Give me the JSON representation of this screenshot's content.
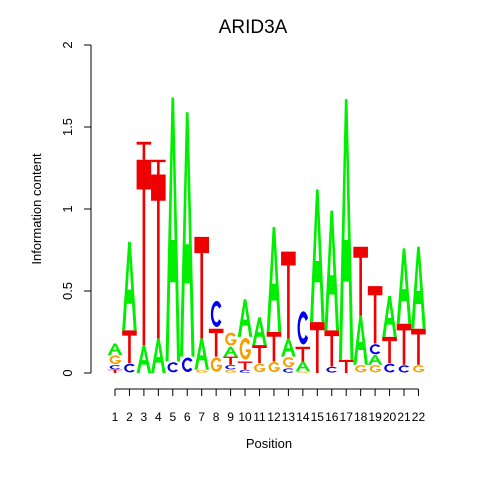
{
  "chart_data": {
    "type": "sequence-logo",
    "title": "ARID3A",
    "xlabel": "Position",
    "ylabel": "Information content",
    "ylim": [
      0,
      2
    ],
    "yticks": [
      "0",
      "0.5",
      "1",
      "1.5",
      "2"
    ],
    "positions": [
      "1",
      "2",
      "3",
      "4",
      "5",
      "6",
      "7",
      "8",
      "9",
      "10",
      "11",
      "12",
      "13",
      "14",
      "15",
      "16",
      "17",
      "18",
      "19",
      "20",
      "21",
      "22"
    ],
    "colors": {
      "A": "#00ee00",
      "C": "#0000ee",
      "G": "#f5a000",
      "T": "#ee0000"
    },
    "stacks": [
      [
        [
          "T",
          0.02
        ],
        [
          "C",
          0.03
        ],
        [
          "G",
          0.06
        ],
        [
          "A",
          0.07
        ]
      ],
      [
        [
          "C",
          0.06
        ],
        [
          "T",
          0.2
        ],
        [
          "A",
          0.54
        ]
      ],
      [
        [
          "A",
          0.17
        ],
        [
          "T",
          1.13
        ],
        [
          "T2",
          0.11
        ]
      ],
      [
        [
          "A",
          0.21
        ],
        [
          "T",
          1.0
        ],
        [
          "T2",
          0.09
        ]
      ],
      [
        [
          "C",
          0.07
        ],
        [
          "A",
          1.61
        ]
      ],
      [
        [
          "C",
          0.1
        ],
        [
          "A",
          1.49
        ]
      ],
      [
        [
          "G",
          0.02
        ],
        [
          "A",
          0.19
        ],
        [
          "T",
          0.62
        ]
      ],
      [
        [
          "G",
          0.1
        ],
        [
          "T",
          0.17
        ],
        [
          "C",
          0.18
        ]
      ],
      [
        [
          "G",
          0.02
        ],
        [
          "C",
          0.03
        ],
        [
          "T",
          0.05
        ],
        [
          "A",
          0.06
        ],
        [
          "G2",
          0.09
        ]
      ],
      [
        [
          "C",
          0.02
        ],
        [
          "T",
          0.05
        ],
        [
          "G",
          0.15
        ],
        [
          "A",
          0.23
        ]
      ],
      [
        [
          "G",
          0.06
        ],
        [
          "T",
          0.11
        ],
        [
          "A",
          0.17
        ]
      ],
      [
        [
          "G",
          0.07
        ],
        [
          "T",
          0.18
        ],
        [
          "A",
          0.64
        ]
      ],
      [
        [
          "C",
          0.03
        ],
        [
          "G",
          0.07
        ],
        [
          "A",
          0.11
        ],
        [
          "T",
          0.53
        ]
      ],
      [
        [
          "G",
          0.01
        ],
        [
          "A",
          0.06
        ],
        [
          "T",
          0.09
        ],
        [
          "C",
          0.23
        ]
      ],
      [
        [
          "T",
          0.31
        ],
        [
          "A",
          0.81
        ]
      ],
      [
        [
          "C",
          0.04
        ],
        [
          "T",
          0.22
        ],
        [
          "A",
          0.73
        ]
      ],
      [
        [
          "T",
          0.08
        ],
        [
          "A",
          1.59
        ]
      ],
      [
        [
          "G",
          0.05
        ],
        [
          "A",
          0.3
        ],
        [
          "T",
          0.42
        ]
      ],
      [
        [
          "G",
          0.05
        ],
        [
          "A",
          0.06
        ],
        [
          "C",
          0.07
        ],
        [
          "T",
          0.35
        ]
      ],
      [
        [
          "C",
          0.06
        ],
        [
          "T",
          0.16
        ],
        [
          "A",
          0.25
        ]
      ],
      [
        [
          "C",
          0.05
        ],
        [
          "T",
          0.25
        ],
        [
          "A",
          0.46
        ]
      ],
      [
        [
          "G",
          0.05
        ],
        [
          "T",
          0.22
        ],
        [
          "A",
          0.5
        ]
      ]
    ]
  }
}
